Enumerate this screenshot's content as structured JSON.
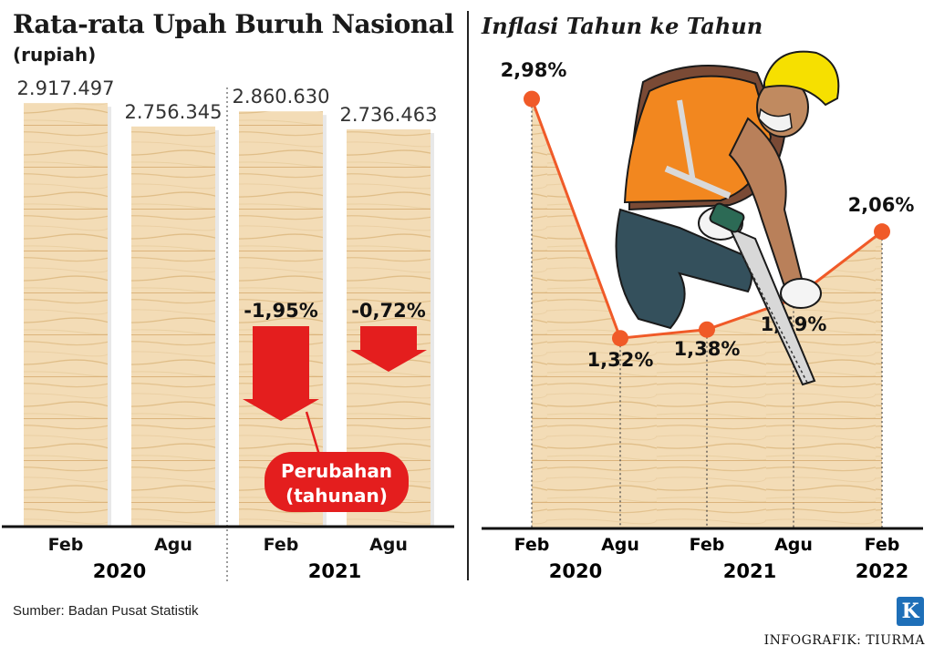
{
  "left_chart": {
    "title": "Rata-rata Upah Buruh Nasional",
    "unit": "(rupiah)",
    "change_badge_line1": "Perubahan",
    "change_badge_line2": "(tahunan)"
  },
  "right_chart": {
    "title": "Inflasi Tahun ke Tahun"
  },
  "footer": {
    "source": "Sumber: Badan Pusat Statistik",
    "credit": "INFOGRAFIK: TIURMA",
    "logo_letter": "K"
  },
  "colors": {
    "bar_wood_light": "#f3dcb6",
    "bar_wood_dark": "#e6c896",
    "arrow_red": "#e41e1e",
    "line_orange": "#f05a28",
    "axis": "#111111"
  },
  "illustration": "worker-with-saw",
  "chart_data": [
    {
      "type": "bar",
      "title": "Rata-rata Upah Buruh Nasional",
      "ylabel": "(rupiah)",
      "categories": [
        "Feb",
        "Agu",
        "Feb",
        "Agu"
      ],
      "groups": [
        "2020",
        "2021"
      ],
      "values": [
        2917497,
        2756345,
        2860630,
        2736463
      ],
      "value_labels": [
        "2.917.497",
        "2.756.345",
        "2.860.630",
        "2.736.463"
      ],
      "yoy_change": [
        null,
        null,
        -1.95,
        -0.72
      ],
      "yoy_change_labels": [
        "",
        "",
        "-1,95%",
        "-0,72%"
      ],
      "ylim": [
        0,
        3000000
      ],
      "grid": false
    },
    {
      "type": "line",
      "title": "Inflasi Tahun ke Tahun",
      "x": [
        "Feb",
        "Agu",
        "Feb",
        "Agu",
        "Feb"
      ],
      "groups": [
        "2020",
        "2021",
        "2022"
      ],
      "values": [
        2.98,
        1.32,
        1.38,
        1.59,
        2.06
      ],
      "value_labels": [
        "2,98%",
        "1,32%",
        "1,38%",
        "1,59%",
        "2,06%"
      ],
      "ylim": [
        0,
        3.3
      ],
      "grid": false
    }
  ]
}
